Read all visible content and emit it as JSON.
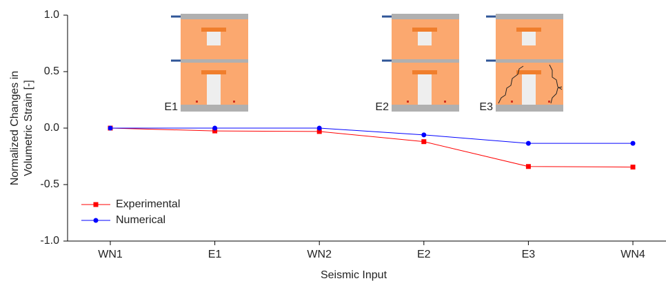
{
  "chart_data": {
    "type": "line",
    "x_label": "Seismic Input",
    "y_label": [
      "Normalized Changes in",
      "Volumetric Strain [-]"
    ],
    "categories": [
      "WN1",
      "E1",
      "WN2",
      "E2",
      "E3",
      "WN4"
    ],
    "series": [
      {
        "name": "Experimental",
        "color": "#ff0000",
        "marker": "square",
        "values": [
          0,
          -0.025,
          -0.03,
          -0.12,
          -0.34,
          -0.345
        ]
      },
      {
        "name": "Numerical",
        "color": "#0000ff",
        "marker": "circle",
        "values": [
          0,
          0,
          0,
          -0.06,
          -0.135,
          -0.135
        ]
      }
    ],
    "ylim": [
      -1.0,
      1.0
    ],
    "yticks": [
      {
        "value": -1.0,
        "label": "-1.0"
      },
      {
        "value": -0.5,
        "label": "-0.5"
      },
      {
        "value": 0,
        "label": "0.0"
      },
      {
        "value": 0.5,
        "label": "0.5"
      },
      {
        "value": 1.0,
        "label": "1.0"
      }
    ],
    "legend": "lower left",
    "insets": [
      {
        "label": "E1"
      },
      {
        "label": "E2"
      },
      {
        "label": "E3"
      }
    ]
  }
}
